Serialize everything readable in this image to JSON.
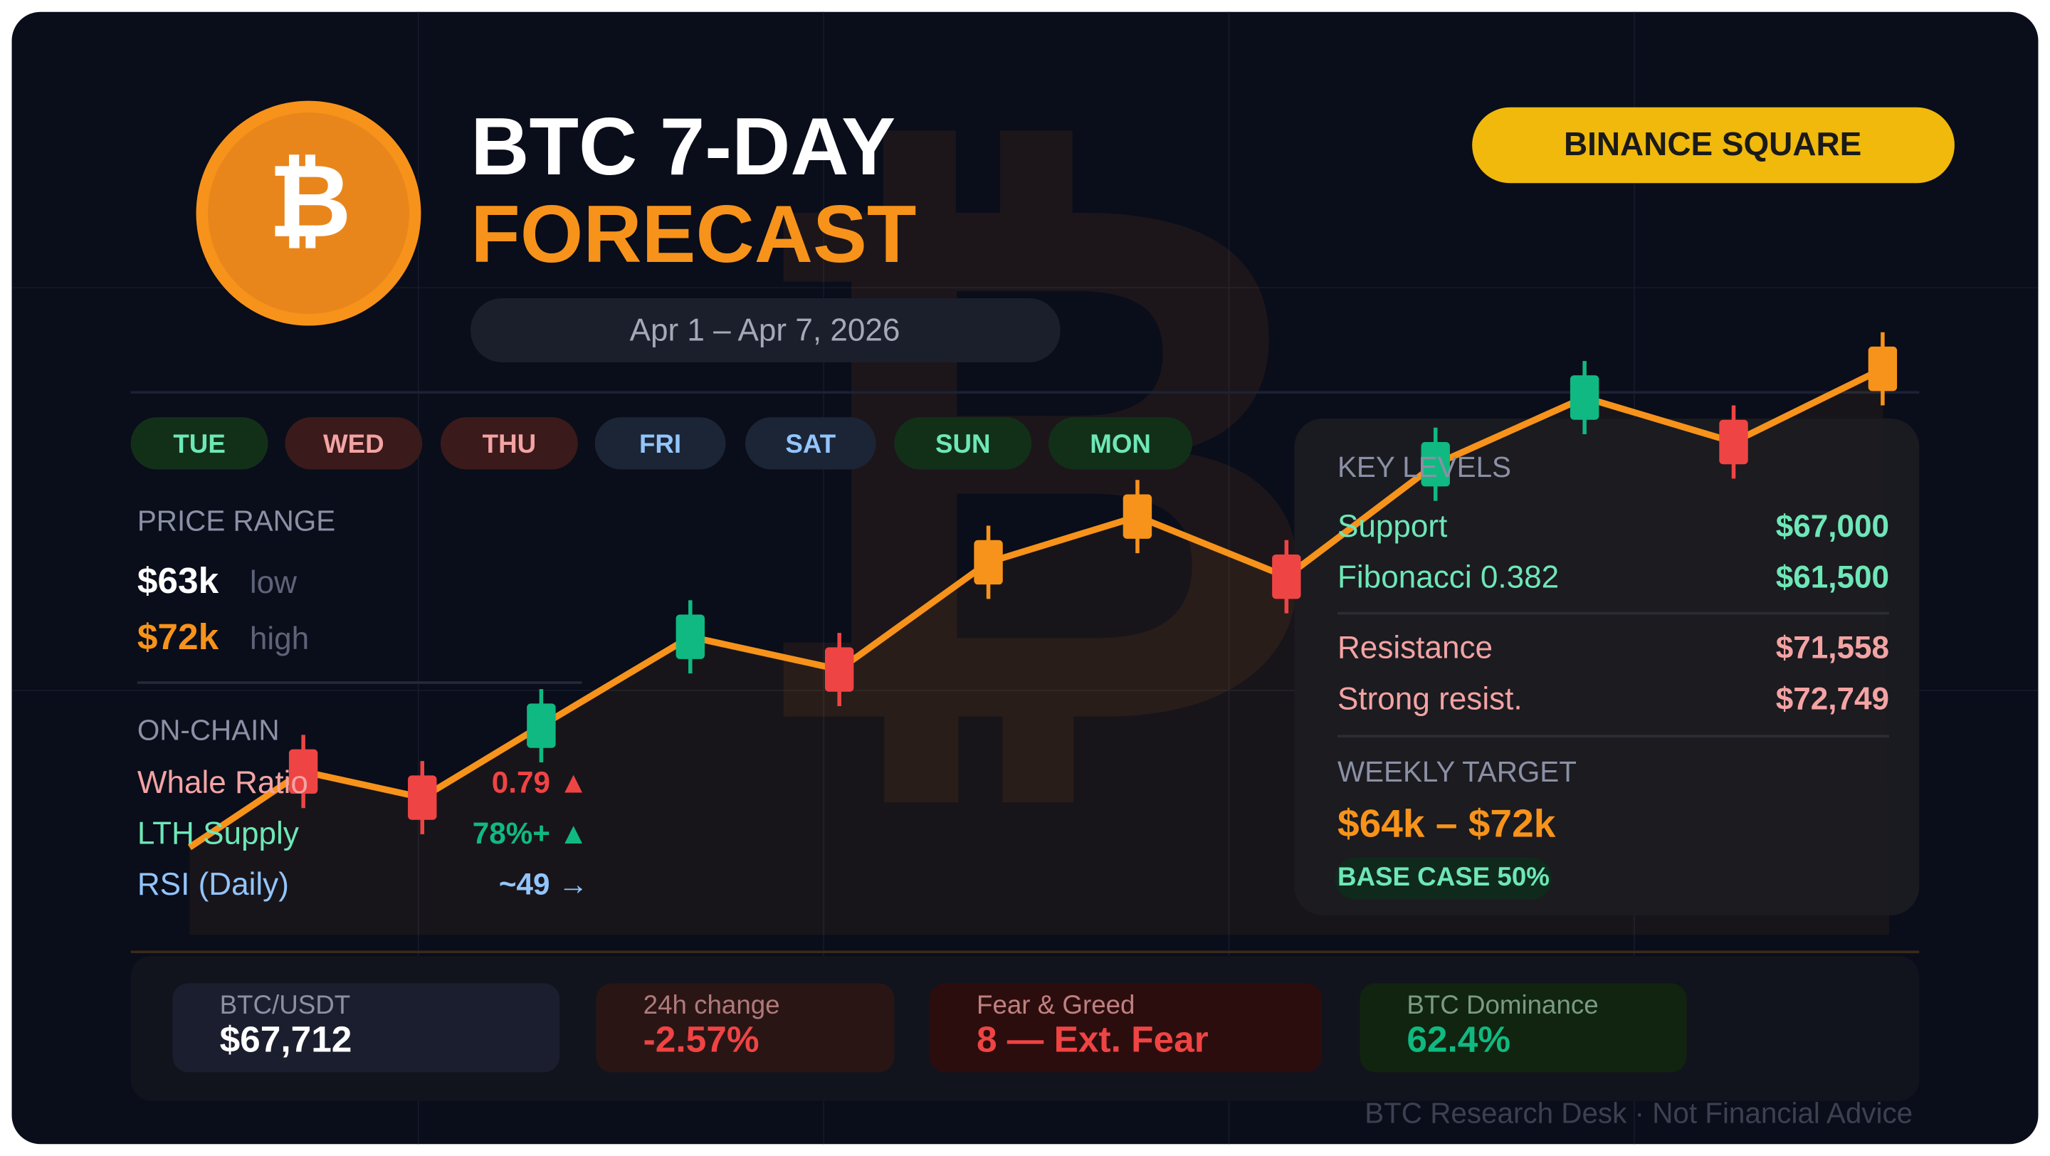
{
  "header": {
    "logo": "₿",
    "title_line1": "BTC 7-DAY",
    "title_line2": "FORECAST",
    "date_range": "Apr 1 – Apr 7, 2026",
    "badge": "BINANCE SQUARE"
  },
  "days": [
    "TUE",
    "WED",
    "THU",
    "FRI",
    "SAT",
    "SUN",
    "MON"
  ],
  "price_range": {
    "title": "PRICE RANGE",
    "low": {
      "value": "$63k",
      "label": "low"
    },
    "high": {
      "value": "$72k",
      "label": "high"
    }
  },
  "on_chain": {
    "title": "ON-CHAIN",
    "rows": [
      {
        "name": "Whale Ratio",
        "value": "0.79 ▲"
      },
      {
        "name": "LTH Supply",
        "value": "78%+ ▲"
      },
      {
        "name": "RSI (Daily)",
        "value": "~49 →"
      }
    ]
  },
  "key_levels": {
    "title": "KEY LEVELS",
    "rows": [
      {
        "name": "Support",
        "value": "$67,000"
      },
      {
        "name": "Fibonacci 0.382",
        "value": "$61,500"
      },
      {
        "name": "Resistance",
        "value": "$71,558"
      },
      {
        "name": "Strong resist.",
        "value": "$72,749"
      }
    ]
  },
  "weekly_target": {
    "title": "WEEKLY TARGET",
    "value": "$64k – $72k",
    "badge": "BASE CASE 50%"
  },
  "stats": [
    {
      "label": "BTC/USDT",
      "value": "$67,712"
    },
    {
      "label": "24h change",
      "value": "-2.57%"
    },
    {
      "label": "Fear & Greed",
      "value": "8 — Ext. Fear"
    },
    {
      "label": "BTC Dominance",
      "value": "62.4%"
    }
  ],
  "footer": "BTC Research Desk · Not Financial Advice"
}
